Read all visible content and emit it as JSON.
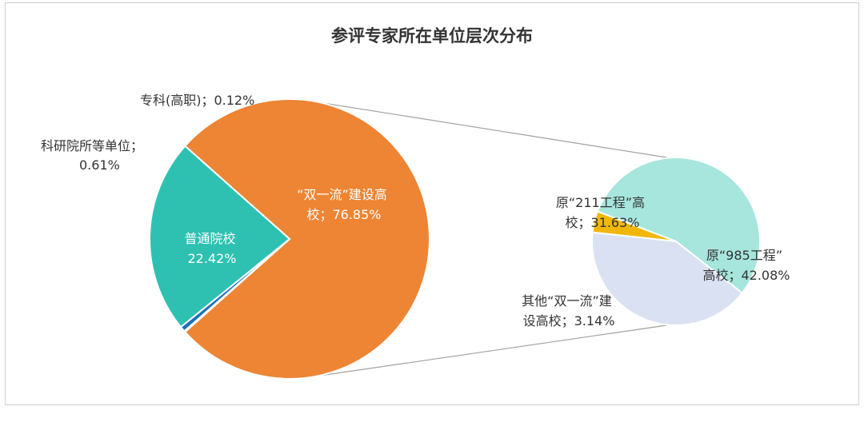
{
  "chart_data": {
    "type": "pie",
    "title": "参评专家所在单位层次分布",
    "main_pie": {
      "slices": [
        {
          "name": "“双一流”建设高校",
          "value": 76.85,
          "label_lines": [
            "“双一流”建设高",
            "校；76.85%"
          ],
          "color": "#ED8534"
        },
        {
          "name": "普通院校",
          "value": 22.42,
          "label_lines": [
            "普通院校",
            "22.42%"
          ],
          "color": "#2EC1B1"
        },
        {
          "name": "科研院所等单位",
          "value": 0.61,
          "label_lines": [
            "科研院所等单位；",
            "0.61%"
          ],
          "color": "#1F6FB8"
        },
        {
          "name": "专科(高职)",
          "value": 0.12,
          "label_lines": [
            "专科(高职)；0.12%"
          ],
          "color": "#A5A5A5"
        }
      ]
    },
    "sub_pie": {
      "parent": "“双一流”建设高校",
      "slices": [
        {
          "name": "原“985工程”高校",
          "value": 42.08,
          "label_lines": [
            "原“985工程”",
            "高校；42.08%"
          ],
          "color": "#A6E6DD"
        },
        {
          "name": "其他“双一流”建设高校",
          "value": 3.14,
          "label_lines": [
            "其他“双一流”建",
            "设高校；3.14%"
          ],
          "color": "#F2B705"
        },
        {
          "name": "原“211工程”高校",
          "value": 31.63,
          "label_lines": [
            "原“211工程”高",
            "校；31.63%"
          ],
          "color": "#D9E1F2"
        }
      ]
    },
    "legend": "none"
  }
}
